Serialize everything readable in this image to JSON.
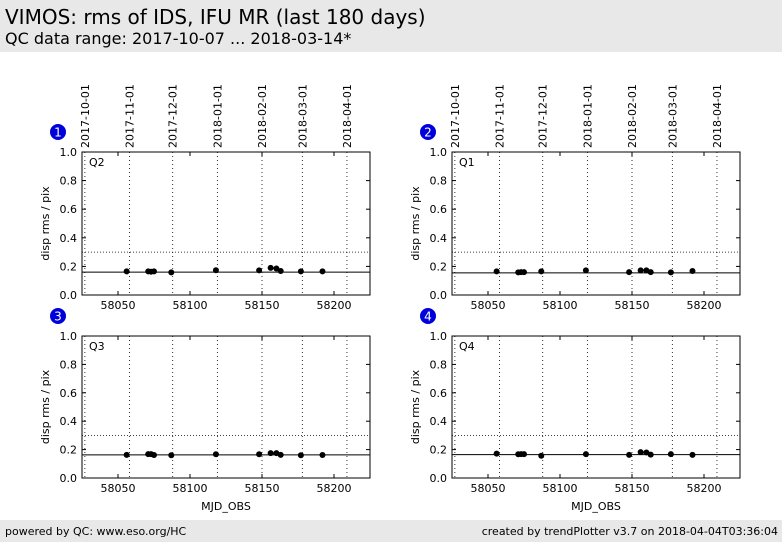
{
  "header": {
    "title": "VIMOS: rms of IDS, IFU MR (last 180 days)",
    "subtitle": "QC data range: 2017-10-07 ... 2018-03-14*"
  },
  "footer": {
    "left": "powered by QC: www.eso.org/HC",
    "right": "created by trendPlotter v3.7 on 2018-04-04T03:36:04"
  },
  "colors": {
    "badge": "#0000dd",
    "points": "#000000",
    "header_band": "#e8e8e8"
  },
  "chart_data": [
    {
      "type": "scatter",
      "badge": "1",
      "label": "Q2",
      "ylabel": "disp rms / pix",
      "xlabel": "",
      "xlim": [
        58025,
        58225
      ],
      "ylim": [
        0.0,
        1.0
      ],
      "xticks": [
        58050,
        58100,
        58150,
        58200
      ],
      "yticks": [
        0.0,
        0.2,
        0.4,
        0.6,
        0.8,
        1.0
      ],
      "date_ticks": [
        "2017-10-01",
        "2017-11-01",
        "2017-12-01",
        "2018-01-01",
        "2018-02-01",
        "2018-03-01",
        "2018-04-01"
      ],
      "date_mjd": [
        58027,
        58058,
        58088,
        58119,
        58150,
        58178,
        58209
      ],
      "reference_line": 0.16,
      "threshold_line": 0.3,
      "x": [
        58056,
        58071,
        58073,
        58075,
        58087,
        58118,
        58148,
        58156,
        58160,
        58163,
        58177,
        58192
      ],
      "y": [
        0.165,
        0.165,
        0.163,
        0.165,
        0.158,
        0.173,
        0.172,
        0.19,
        0.185,
        0.168,
        0.165,
        0.165
      ]
    },
    {
      "type": "scatter",
      "badge": "2",
      "label": "Q1",
      "ylabel": "disp rms / pix",
      "xlabel": "",
      "xlim": [
        58025,
        58225
      ],
      "ylim": [
        0.0,
        1.0
      ],
      "xticks": [
        58050,
        58100,
        58150,
        58200
      ],
      "yticks": [
        0.0,
        0.2,
        0.4,
        0.6,
        0.8,
        1.0
      ],
      "date_ticks": [
        "2017-10-01",
        "2017-11-01",
        "2017-12-01",
        "2018-01-01",
        "2018-02-01",
        "2018-03-01",
        "2018-04-01"
      ],
      "date_mjd": [
        58027,
        58058,
        58088,
        58119,
        58150,
        58178,
        58209
      ],
      "reference_line": 0.155,
      "threshold_line": 0.3,
      "x": [
        58056,
        58071,
        58073,
        58075,
        58087,
        58118,
        58148,
        58156,
        58160,
        58163,
        58177,
        58192
      ],
      "y": [
        0.165,
        0.158,
        0.16,
        0.16,
        0.165,
        0.172,
        0.16,
        0.172,
        0.172,
        0.16,
        0.158,
        0.168
      ]
    },
    {
      "type": "scatter",
      "badge": "3",
      "label": "Q3",
      "ylabel": "disp rms / pix",
      "xlabel": "MJD_OBS",
      "xlim": [
        58025,
        58225
      ],
      "ylim": [
        0.0,
        1.0
      ],
      "xticks": [
        58050,
        58100,
        58150,
        58200
      ],
      "yticks": [
        0.0,
        0.2,
        0.4,
        0.6,
        0.8,
        1.0
      ],
      "date_mjd": [
        58027,
        58058,
        58088,
        58119,
        58150,
        58178,
        58209
      ],
      "reference_line": 0.163,
      "threshold_line": 0.3,
      "x": [
        58056,
        58071,
        58073,
        58075,
        58087,
        58118,
        58148,
        58156,
        58160,
        58163,
        58177,
        58192
      ],
      "y": [
        0.163,
        0.168,
        0.168,
        0.162,
        0.16,
        0.167,
        0.167,
        0.175,
        0.175,
        0.163,
        0.16,
        0.162
      ]
    },
    {
      "type": "scatter",
      "badge": "4",
      "label": "Q4",
      "ylabel": "disp rms / pix",
      "xlabel": "MJD_OBS",
      "xlim": [
        58025,
        58225
      ],
      "ylim": [
        0.0,
        1.0
      ],
      "xticks": [
        58050,
        58100,
        58150,
        58200
      ],
      "yticks": [
        0.0,
        0.2,
        0.4,
        0.6,
        0.8,
        1.0
      ],
      "date_mjd": [
        58027,
        58058,
        58088,
        58119,
        58150,
        58178,
        58209
      ],
      "reference_line": 0.165,
      "threshold_line": 0.3,
      "x": [
        58056,
        58071,
        58073,
        58075,
        58087,
        58118,
        58148,
        58156,
        58160,
        58163,
        58177,
        58192
      ],
      "y": [
        0.172,
        0.167,
        0.168,
        0.168,
        0.157,
        0.168,
        0.163,
        0.182,
        0.18,
        0.165,
        0.168,
        0.163
      ]
    }
  ]
}
